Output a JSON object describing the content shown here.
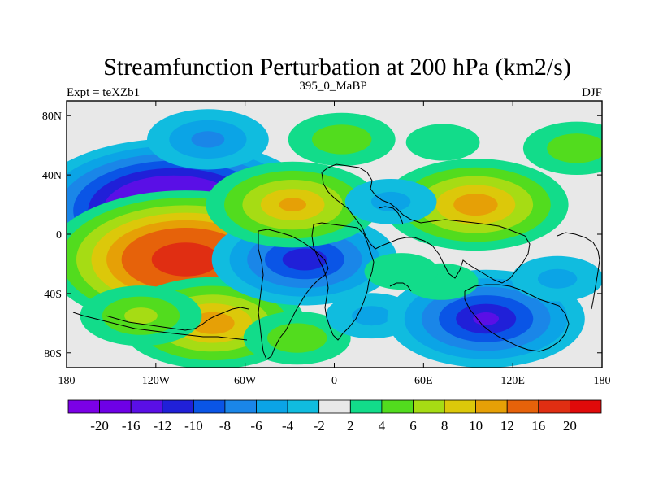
{
  "chart_data": {
    "type": "heatmap",
    "title": "Streamfunction Perturbation at 200 hPa (km2/s)",
    "left_string": "Expt = teXZb1",
    "center_string": "395_0_MaBP",
    "right_string": "DJF",
    "lon_range": [
      -180,
      180
    ],
    "lat_range": [
      -90,
      90
    ],
    "x_ticks": [
      {
        "value": -180,
        "label": "180"
      },
      {
        "value": -120,
        "label": "120W"
      },
      {
        "value": -60,
        "label": "60W"
      },
      {
        "value": 0,
        "label": "0"
      },
      {
        "value": 60,
        "label": "60E"
      },
      {
        "value": 120,
        "label": "120E"
      },
      {
        "value": 180,
        "label": "180"
      }
    ],
    "y_ticks": [
      {
        "value": 80,
        "label": "80N"
      },
      {
        "value": 40,
        "label": "40N"
      },
      {
        "value": 0,
        "label": "0"
      },
      {
        "value": -40,
        "label": "40S"
      },
      {
        "value": -80,
        "label": "80S"
      }
    ],
    "levels": [
      -20,
      -16,
      -12,
      -10,
      -8,
      -6,
      -4,
      -2,
      2,
      4,
      6,
      8,
      10,
      12,
      16,
      20
    ],
    "level_labels": [
      "-20",
      "-16",
      "-12",
      "-10",
      "-8",
      "-6",
      "-4",
      "-2",
      "2",
      "4",
      "6",
      "8",
      "10",
      "12",
      "16",
      "20"
    ],
    "colors": [
      "#7b00e6",
      "#6e00e6",
      "#5a0fe6",
      "#2020d8",
      "#0a55e6",
      "#1a86e8",
      "#0ba4e6",
      "#10bcdf",
      "#e8e8e8",
      "#12dc8a",
      "#52dc1e",
      "#a6dc14",
      "#dcc80a",
      "#e6a006",
      "#e6620a",
      "#e02e12",
      "#e00a0a"
    ],
    "anomalies": [
      {
        "lon": -108,
        "lat": 16,
        "value": -20
      },
      {
        "lon": -100,
        "lat": -17,
        "value": 19
      },
      {
        "lon": -82,
        "lat": -60,
        "value": 11
      },
      {
        "lon": -130,
        "lat": -55,
        "value": 6
      },
      {
        "lon": -25,
        "lat": -70,
        "value": 5
      },
      {
        "lon": -20,
        "lat": -17,
        "value": -11
      },
      {
        "lon": 25,
        "lat": -55,
        "value": -4
      },
      {
        "lon": -28,
        "lat": 20,
        "value": 10
      },
      {
        "lon": 95,
        "lat": 20,
        "value": 11
      },
      {
        "lon": -85,
        "lat": 64,
        "value": -6
      },
      {
        "lon": 5,
        "lat": 64,
        "value": 5
      },
      {
        "lon": 73,
        "lat": 62,
        "value": 3
      },
      {
        "lon": 163,
        "lat": 58,
        "value": 5
      },
      {
        "lon": 102,
        "lat": -57,
        "value": -12
      },
      {
        "lon": 150,
        "lat": -30,
        "value": -4
      },
      {
        "lon": 72,
        "lat": -32,
        "value": 3
      },
      {
        "lon": 38,
        "lat": 22,
        "value": -4
      },
      {
        "lon": 45,
        "lat": -25,
        "value": 3
      }
    ]
  }
}
